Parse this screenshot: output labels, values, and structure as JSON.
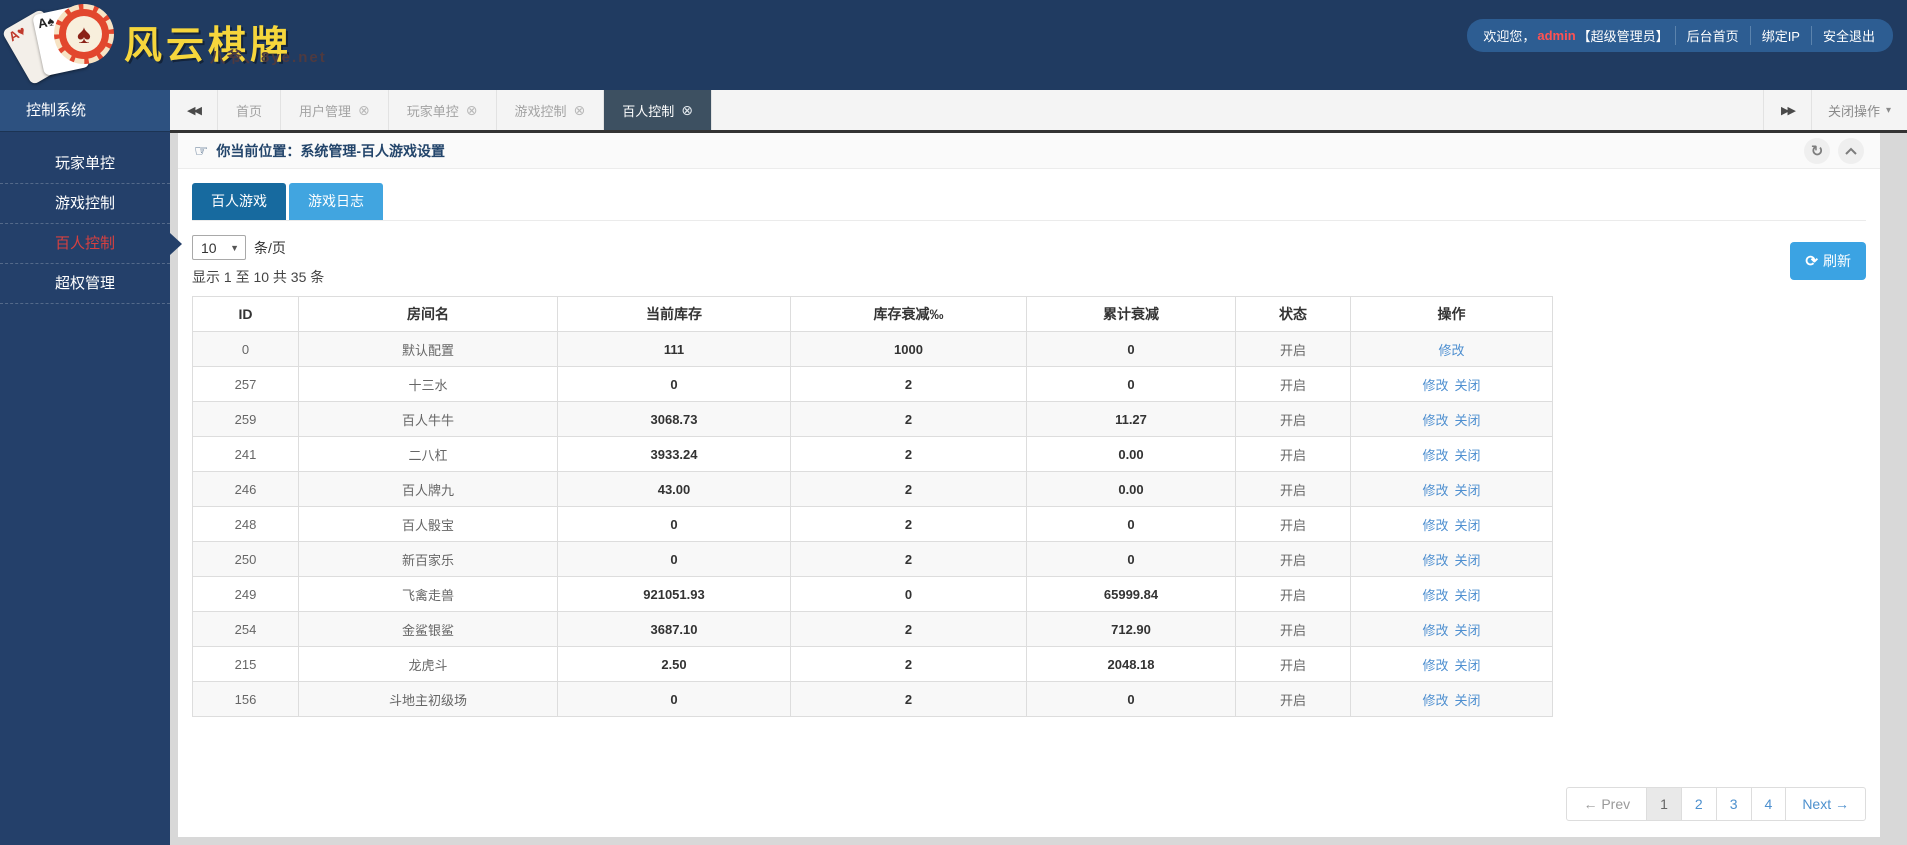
{
  "header": {
    "brand": "风云棋牌",
    "watermark": "八爷、8ye.net",
    "user_bar": {
      "welcome_prefix": "欢迎您，",
      "username": "admin",
      "role_badge": "【超级管理员】",
      "links": [
        "后台首页",
        "绑定IP",
        "安全退出"
      ]
    }
  },
  "sidebar": {
    "section_title": "控制系统",
    "items": [
      {
        "label": "玩家单控",
        "active": false
      },
      {
        "label": "游戏控制",
        "active": false
      },
      {
        "label": "百人控制",
        "active": true
      },
      {
        "label": "超权管理",
        "active": false
      }
    ]
  },
  "tabbar": {
    "tabs": [
      {
        "label": "首页",
        "closable": false,
        "active": false
      },
      {
        "label": "用户管理",
        "closable": true,
        "active": false
      },
      {
        "label": "玩家单控",
        "closable": true,
        "active": false
      },
      {
        "label": "游戏控制",
        "closable": true,
        "active": false
      },
      {
        "label": "百人控制",
        "closable": true,
        "active": true
      }
    ],
    "close_menu_label": "关闭操作"
  },
  "breadcrumb": {
    "location_text": "你当前位置：系统管理-百人游戏设置"
  },
  "game_tabs": [
    {
      "label": "百人游戏",
      "active": true
    },
    {
      "label": "游戏日志",
      "active": false
    }
  ],
  "toolbar": {
    "page_size_value": "10",
    "page_size_unit": "条/页",
    "summary": "显示 1 至 10 共 35 条",
    "refresh_label": "刷新"
  },
  "table": {
    "headers": [
      "ID",
      "房间名",
      "当前库存",
      "库存衰减‰",
      "累计衰减",
      "状态",
      "操作"
    ],
    "rows": [
      {
        "id": "0",
        "room": "默认配置",
        "stock": "111",
        "decay": "1000",
        "total_decay": "0",
        "status": "开启",
        "actions": [
          "修改"
        ]
      },
      {
        "id": "257",
        "room": "十三水",
        "stock": "0",
        "decay": "2",
        "total_decay": "0",
        "status": "开启",
        "actions": [
          "修改",
          "关闭"
        ]
      },
      {
        "id": "259",
        "room": "百人牛牛",
        "stock": "3068.73",
        "decay": "2",
        "total_decay": "11.27",
        "status": "开启",
        "actions": [
          "修改",
          "关闭"
        ]
      },
      {
        "id": "241",
        "room": "二八杠",
        "stock": "3933.24",
        "decay": "2",
        "total_decay": "0.00",
        "status": "开启",
        "actions": [
          "修改",
          "关闭"
        ]
      },
      {
        "id": "246",
        "room": "百人牌九",
        "stock": "43.00",
        "decay": "2",
        "total_decay": "0.00",
        "status": "开启",
        "actions": [
          "修改",
          "关闭"
        ]
      },
      {
        "id": "248",
        "room": "百人骰宝",
        "stock": "0",
        "decay": "2",
        "total_decay": "0",
        "status": "开启",
        "actions": [
          "修改",
          "关闭"
        ]
      },
      {
        "id": "250",
        "room": "新百家乐",
        "stock": "0",
        "decay": "2",
        "total_decay": "0",
        "status": "开启",
        "actions": [
          "修改",
          "关闭"
        ]
      },
      {
        "id": "249",
        "room": "飞禽走兽",
        "stock": "921051.93",
        "decay": "0",
        "total_decay": "65999.84",
        "status": "开启",
        "actions": [
          "修改",
          "关闭"
        ]
      },
      {
        "id": "254",
        "room": "金鲨银鲨",
        "stock": "3687.10",
        "decay": "2",
        "total_decay": "712.90",
        "status": "开启",
        "actions": [
          "修改",
          "关闭"
        ]
      },
      {
        "id": "215",
        "room": "龙虎斗",
        "stock": "2.50",
        "decay": "2",
        "total_decay": "2048.18",
        "status": "开启",
        "actions": [
          "修改",
          "关闭"
        ]
      },
      {
        "id": "156",
        "room": "斗地主初级场",
        "stock": "0",
        "decay": "2",
        "total_decay": "0",
        "status": "开启",
        "actions": [
          "修改",
          "关闭"
        ]
      }
    ]
  },
  "pagination": {
    "prev": "← Prev",
    "pages": [
      "1",
      "2",
      "3",
      "4"
    ],
    "current": "1",
    "next": "Next →"
  },
  "colors": {
    "header_navy": "#203b61",
    "sidebar_navy": "#24406a",
    "sidebar_section_blue": "#2d5180",
    "active_menu_red": "#d64040",
    "active_tab_bg": "#3d5061",
    "game_tab_dark_blue": "#176a9f",
    "game_tab_light_blue": "#41a5e0",
    "refresh_blue": "#3ba3e3",
    "link_blue": "#4e8fd0",
    "brand_yellow": "#f6d63c",
    "username_red": "#ff5252"
  }
}
